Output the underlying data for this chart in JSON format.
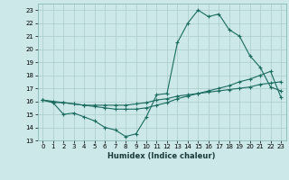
{
  "title": "",
  "xlabel": "Humidex (Indice chaleur)",
  "ylabel": "",
  "bg_color": "#cce8e8",
  "line_color": "#1a6b60",
  "grid_color": "#aacccc",
  "ylim": [
    13,
    23.5
  ],
  "xlim": [
    -0.5,
    23.5
  ],
  "yticks": [
    13,
    14,
    15,
    16,
    17,
    18,
    19,
    20,
    21,
    22,
    23
  ],
  "xticks": [
    0,
    1,
    2,
    3,
    4,
    5,
    6,
    7,
    8,
    9,
    10,
    11,
    12,
    13,
    14,
    15,
    16,
    17,
    18,
    19,
    20,
    21,
    22,
    23
  ],
  "line1_x": [
    0,
    1,
    2,
    3,
    4,
    5,
    6,
    7,
    8,
    9,
    10,
    11,
    12,
    13,
    14,
    15,
    16,
    17,
    18,
    19,
    20,
    21,
    22,
    23
  ],
  "line1_y": [
    16.1,
    15.9,
    15.0,
    15.1,
    14.8,
    14.5,
    14.0,
    13.8,
    13.3,
    13.5,
    14.8,
    16.5,
    16.6,
    20.5,
    22.0,
    23.0,
    22.5,
    22.7,
    21.5,
    21.0,
    19.5,
    18.6,
    17.1,
    16.8
  ],
  "line2_x": [
    0,
    1,
    2,
    3,
    4,
    5,
    6,
    7,
    8,
    9,
    10,
    11,
    12,
    13,
    14,
    15,
    16,
    17,
    18,
    19,
    20,
    21,
    22,
    23
  ],
  "line2_y": [
    16.1,
    15.9,
    15.9,
    15.8,
    15.7,
    15.7,
    15.7,
    15.7,
    15.7,
    15.8,
    15.9,
    16.1,
    16.2,
    16.4,
    16.5,
    16.6,
    16.7,
    16.8,
    16.9,
    17.0,
    17.1,
    17.3,
    17.4,
    17.5
  ],
  "line3_x": [
    0,
    1,
    2,
    3,
    4,
    5,
    6,
    7,
    8,
    9,
    10,
    11,
    12,
    13,
    14,
    15,
    16,
    17,
    18,
    19,
    20,
    21,
    22,
    23
  ],
  "line3_y": [
    16.1,
    16.0,
    15.9,
    15.8,
    15.7,
    15.6,
    15.5,
    15.4,
    15.4,
    15.4,
    15.5,
    15.7,
    15.9,
    16.2,
    16.4,
    16.6,
    16.8,
    17.0,
    17.2,
    17.5,
    17.7,
    18.0,
    18.3,
    16.3
  ]
}
